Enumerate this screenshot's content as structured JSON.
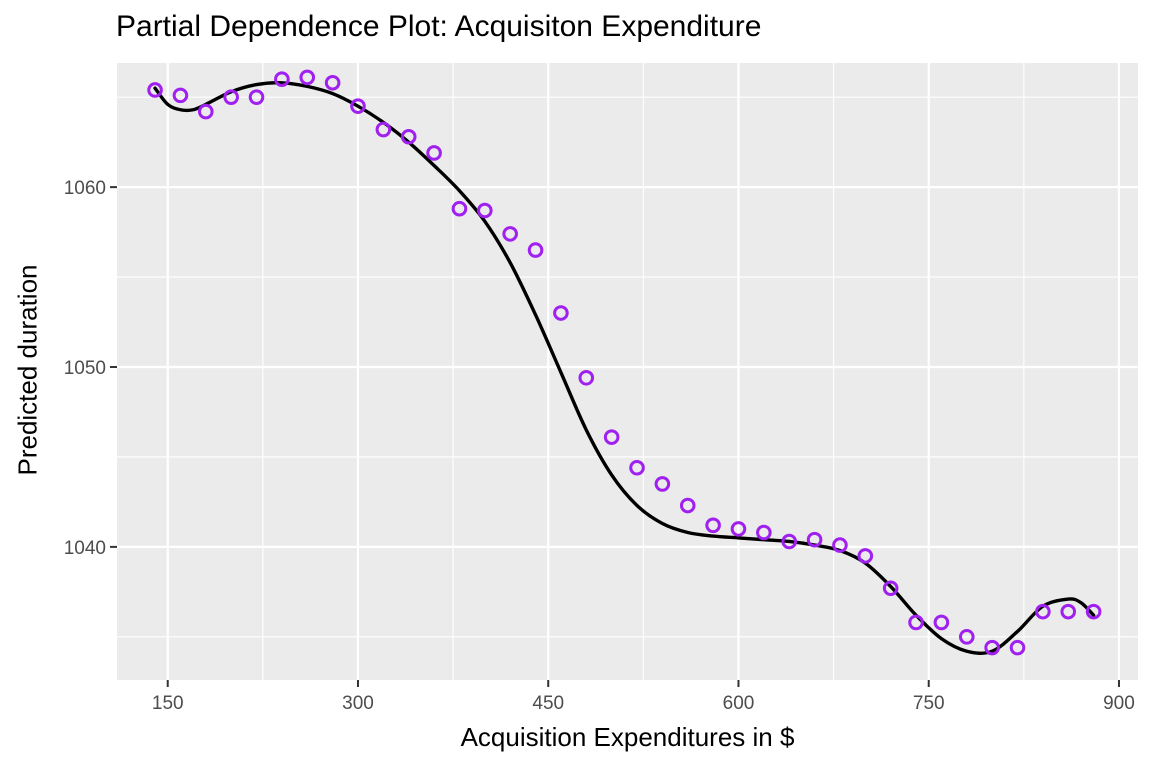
{
  "chart_data": {
    "type": "scatter",
    "title": "Partial Dependence Plot: Acquisiton Expenditure",
    "xlabel": "Acquisition Expenditures in $",
    "ylabel": "Predicted duration",
    "xlim": [
      110,
      915
    ],
    "ylim": [
      1032.6,
      1066.9
    ],
    "x_ticks": [
      150,
      300,
      450,
      600,
      750,
      900
    ],
    "y_ticks": [
      1040,
      1050,
      1060
    ],
    "grid": true,
    "legend": "none",
    "point_color": "#A020F0",
    "line_color": "#000000",
    "panel_background": "#EBEBEB",
    "series": [
      {
        "kind": "points",
        "x": [
          140,
          160,
          180,
          200,
          220,
          240,
          260,
          280,
          300,
          320,
          340,
          360,
          380,
          400,
          420,
          440,
          460,
          480,
          500,
          520,
          540,
          560,
          580,
          600,
          620,
          640,
          660,
          680,
          700,
          720,
          740,
          760,
          780,
          800,
          820,
          840,
          860,
          880
        ],
        "y": [
          1065.4,
          1065.1,
          1064.2,
          1065.0,
          1065.0,
          1066.0,
          1066.1,
          1065.8,
          1064.5,
          1063.2,
          1062.8,
          1061.9,
          1058.8,
          1058.7,
          1057.4,
          1056.5,
          1053.0,
          1049.4,
          1046.1,
          1044.4,
          1043.5,
          1042.3,
          1041.2,
          1041.0,
          1040.8,
          1040.3,
          1040.4,
          1040.1,
          1039.5,
          1037.7,
          1035.8,
          1035.8,
          1035.0,
          1034.4,
          1034.4,
          1036.4,
          1036.4,
          1036.4
        ]
      },
      {
        "kind": "smooth",
        "x": [
          140,
          150,
          160,
          170,
          180,
          200,
          220,
          240,
          260,
          280,
          300,
          320,
          340,
          360,
          380,
          400,
          420,
          440,
          460,
          480,
          500,
          520,
          540,
          560,
          580,
          600,
          620,
          640,
          660,
          680,
          700,
          720,
          740,
          760,
          780,
          800,
          820,
          840,
          860,
          870,
          880
        ],
        "y": [
          1065.5,
          1064.6,
          1064.3,
          1064.3,
          1064.6,
          1065.3,
          1065.7,
          1065.8,
          1065.6,
          1065.2,
          1064.5,
          1063.6,
          1062.5,
          1061.2,
          1059.8,
          1058.1,
          1055.8,
          1052.9,
          1049.7,
          1046.5,
          1044.0,
          1042.3,
          1041.3,
          1040.8,
          1040.6,
          1040.5,
          1040.4,
          1040.3,
          1040.1,
          1039.8,
          1039.1,
          1037.8,
          1036.2,
          1034.9,
          1034.2,
          1034.2,
          1035.3,
          1036.7,
          1037.1,
          1036.9,
          1036.2
        ]
      }
    ]
  }
}
